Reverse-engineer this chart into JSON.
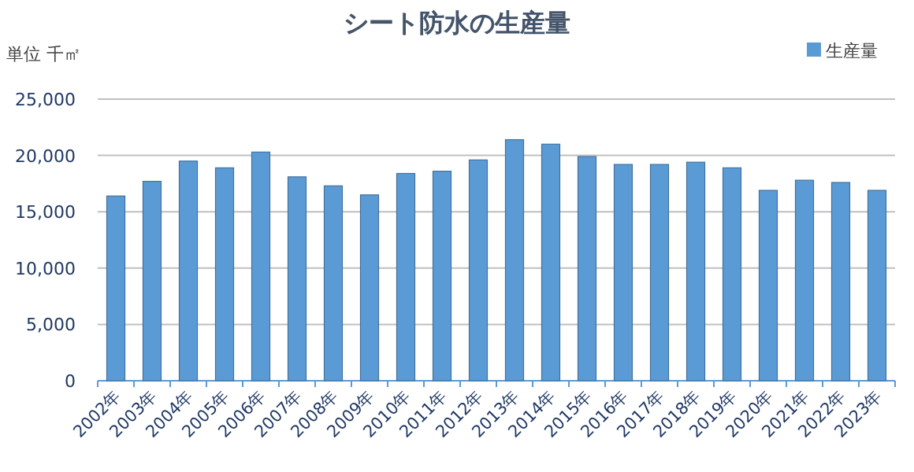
{
  "chart_data": {
    "type": "bar",
    "title": "シート防水の生産量",
    "ylabel": "単位 千㎡",
    "categories": [
      "2002年",
      "2003年",
      "2004年",
      "2005年",
      "2006年",
      "2007年",
      "2008年",
      "2009年",
      "2010年",
      "2011年",
      "2012年",
      "2013年",
      "2014年",
      "2015年",
      "2016年",
      "2017年",
      "2018年",
      "2019年",
      "2020年",
      "2021年",
      "2022年",
      "2023年"
    ],
    "series": [
      {
        "name": "生産量",
        "color": "#5b9bd5",
        "values": [
          16400,
          17700,
          19500,
          18900,
          20300,
          18100,
          17300,
          16500,
          18400,
          18600,
          19600,
          21400,
          21000,
          19900,
          19200,
          19200,
          19400,
          18900,
          16900,
          17800,
          17600,
          16900
        ]
      }
    ],
    "ylim": [
      0,
      25000
    ],
    "yticks": [
      {
        "value": 0,
        "label": "0"
      },
      {
        "value": 5000,
        "label": "5,000"
      },
      {
        "value": 10000,
        "label": "10,000"
      },
      {
        "value": 15000,
        "label": "15,000"
      },
      {
        "value": 20000,
        "label": "20,000"
      },
      {
        "value": 25000,
        "label": "25,000"
      }
    ],
    "grid": "y",
    "legend": "top right"
  }
}
